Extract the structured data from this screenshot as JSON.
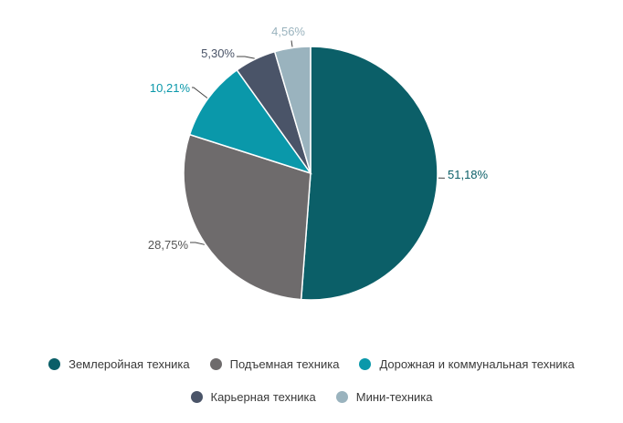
{
  "chart_data": {
    "type": "pie",
    "title": "",
    "start_angle_deg": 0,
    "direction": "clockwise",
    "slices": [
      {
        "name": "Землеройная техника",
        "value": 51.18,
        "label": "51,18%",
        "color": "#0b5f68",
        "label_color": "#0b5f68"
      },
      {
        "name": "Подъемная техника",
        "value": 28.75,
        "label": "28,75%",
        "color": "#6e6b6c",
        "label_color": "#555555"
      },
      {
        "name": "Дорожная и коммунальная техника",
        "value": 10.21,
        "label": "10,21%",
        "color": "#0a98aa",
        "label_color": "#0a98aa"
      },
      {
        "name": "Карьерная техника",
        "value": 5.3,
        "label": "5,30%",
        "color": "#4a5468",
        "label_color": "#4a5468"
      },
      {
        "name": "Мини-техника",
        "value": 4.56,
        "label": "4,56%",
        "color": "#9ab3be",
        "label_color": "#9ab3be"
      }
    ],
    "legend_placement": "bottom"
  }
}
